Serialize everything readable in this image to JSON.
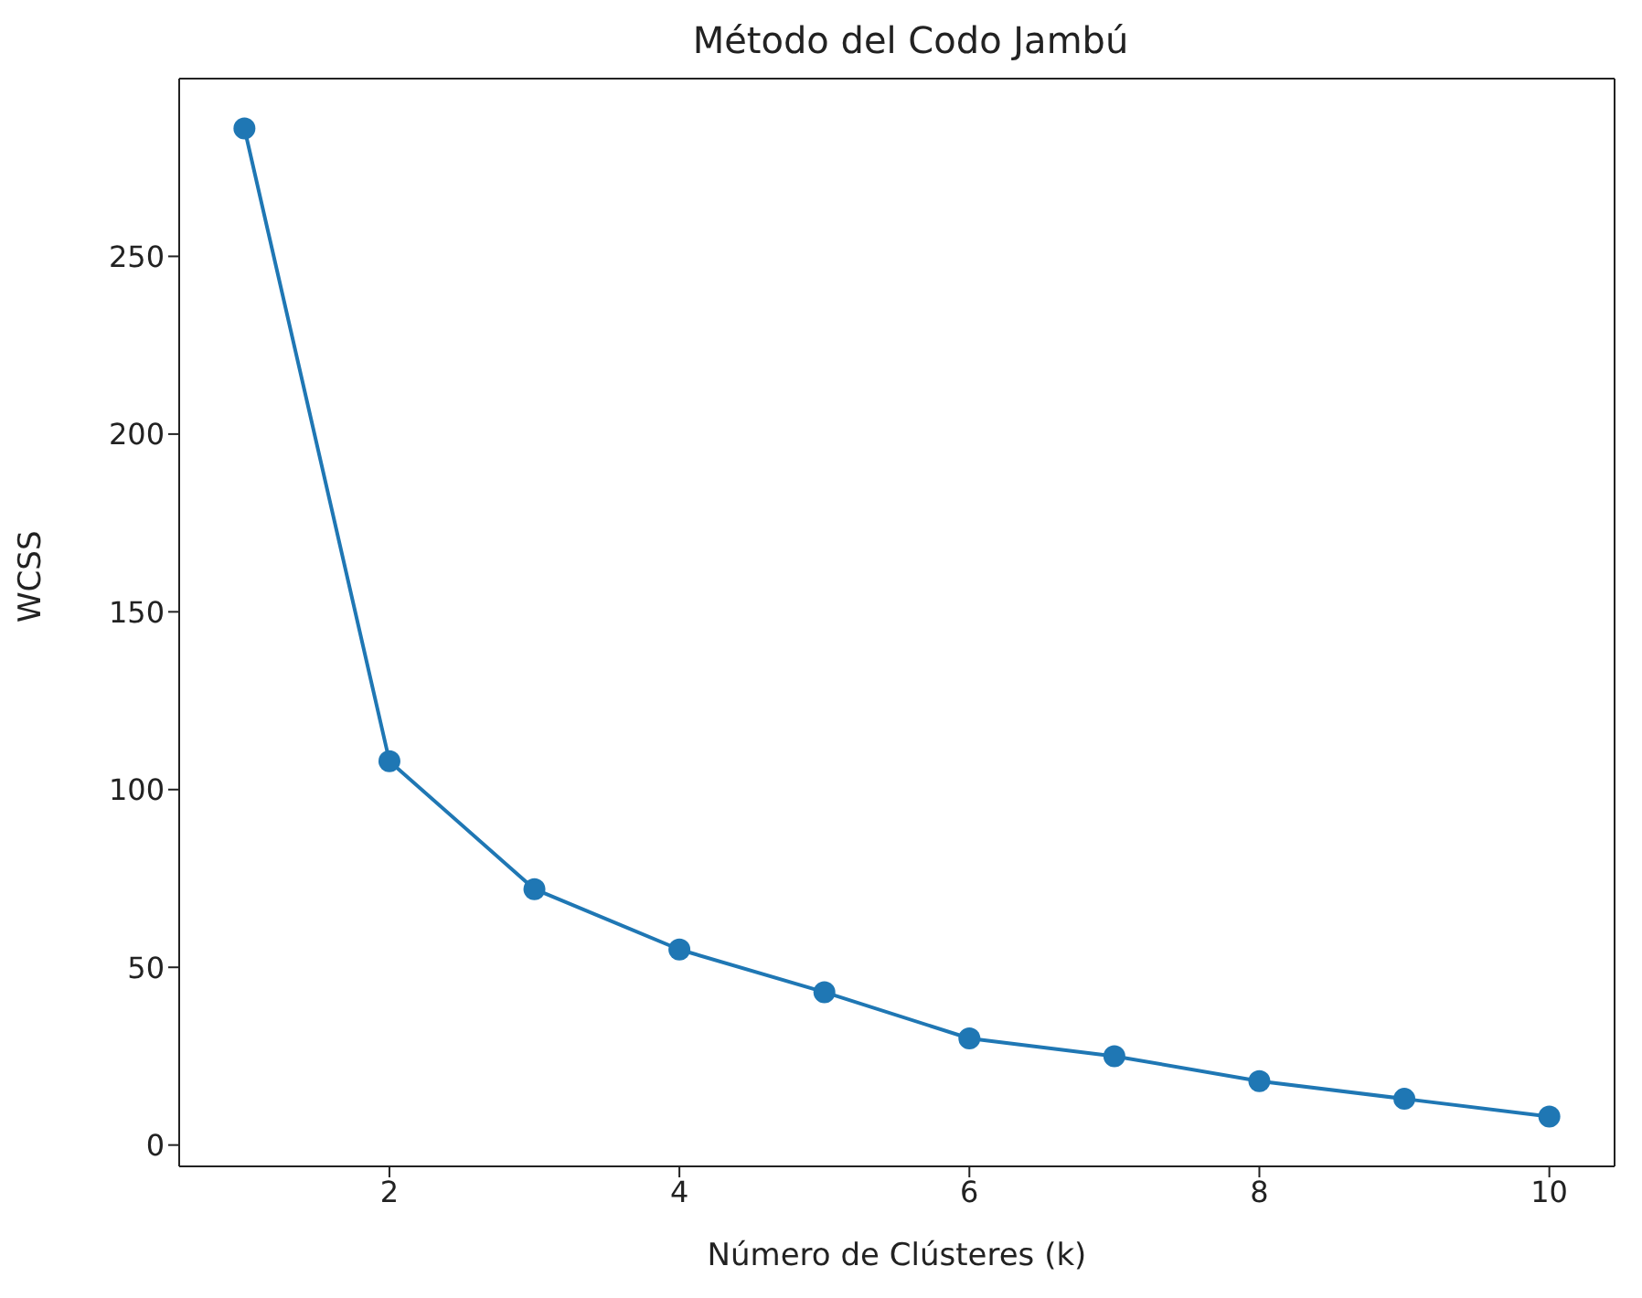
{
  "chart_data": {
    "type": "line",
    "title": "Método del Codo Jambú",
    "xlabel": "Número de Clústeres (k)",
    "ylabel": "WCSS",
    "x": [
      1,
      2,
      3,
      4,
      5,
      6,
      7,
      8,
      9,
      10
    ],
    "series": [
      {
        "color": "#1f77b4",
        "values": [
          286,
          108,
          72,
          55,
          43,
          30,
          25,
          18,
          13,
          8
        ]
      }
    ],
    "xlim": [
      0.55,
      10.45
    ],
    "ylim": [
      -6,
      300
    ],
    "xticks": [
      2,
      4,
      6,
      8,
      10
    ],
    "yticks": [
      0,
      50,
      100,
      150,
      200,
      250
    ],
    "marker": "circle",
    "line_style": "solid",
    "grid": false,
    "legend": false
  }
}
